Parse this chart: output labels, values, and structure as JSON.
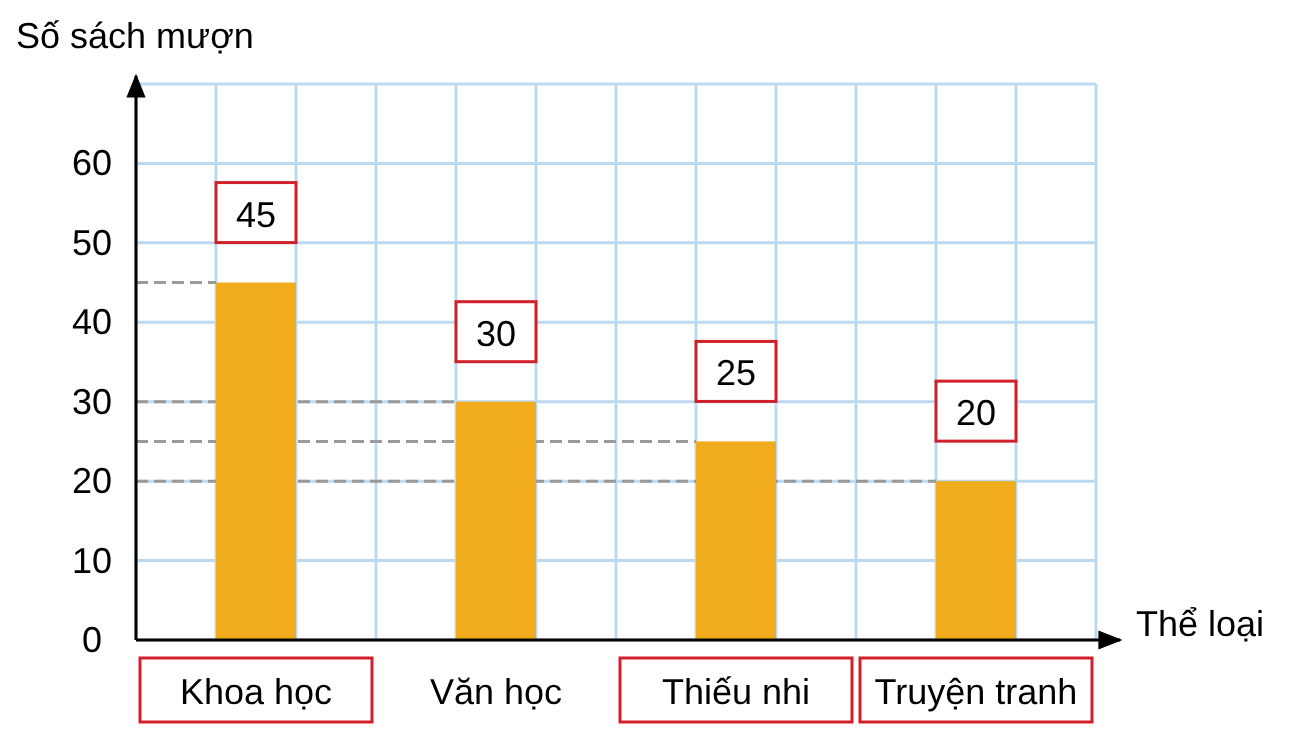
{
  "chart_data": {
    "type": "bar",
    "xlabel": "Thể loại",
    "ylabel": "Số sách mượn",
    "categories": [
      "Khoa học",
      "Văn học",
      "Thiếu nhi",
      "Truyện tranh"
    ],
    "values": [
      45,
      30,
      25,
      20
    ],
    "color": "#f0ac1c",
    "data_labels": true,
    "ylim": [
      0,
      70
    ],
    "yticks": [
      0,
      10,
      20,
      30,
      40,
      50,
      60
    ],
    "grid": true,
    "ref_lines": [
      {
        "axis": "y",
        "value": 45,
        "color": "#9a9a9a",
        "line_style": "dashed"
      },
      {
        "axis": "y",
        "value": 30,
        "color": "#9a9a9a",
        "line_style": "dashed"
      },
      {
        "axis": "y",
        "value": 25,
        "color": "#9a9a9a",
        "line_style": "dashed"
      },
      {
        "axis": "y",
        "value": 20,
        "color": "#9a9a9a",
        "line_style": "dashed"
      }
    ]
  }
}
